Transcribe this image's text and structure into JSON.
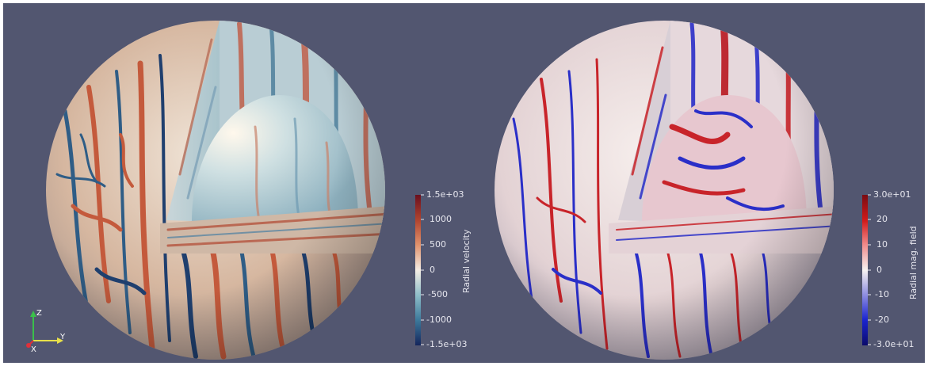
{
  "left_plot": {
    "colorbar": {
      "title": "Radial velocity",
      "ticks": [
        "1.5e+03",
        "1000",
        "500",
        "0",
        "-500",
        "-1000",
        "-1.5e+03"
      ],
      "colormap": [
        "#6b0f1e",
        "#b2452f",
        "#e0916b",
        "#f4ede4",
        "#8cbcc8",
        "#3d7a9c",
        "#14255c"
      ]
    }
  },
  "right_plot": {
    "colorbar": {
      "title": "Radial mag. field",
      "ticks": [
        "3.0e+01",
        "20",
        "10",
        "0",
        "-10",
        "-20",
        "-3.0e+01"
      ],
      "colormap": [
        "#7a0b12",
        "#d11a1a",
        "#f08a8a",
        "#f7f3f2",
        "#8a8ae0",
        "#1a24d0",
        "#0b0b6a"
      ]
    }
  },
  "axes_triad": {
    "labels": [
      "Z",
      "Y",
      "X"
    ],
    "colors": {
      "x": "#e0303a",
      "y": "#e8e04a",
      "z": "#3ac04a"
    }
  },
  "background_color": "#525670"
}
